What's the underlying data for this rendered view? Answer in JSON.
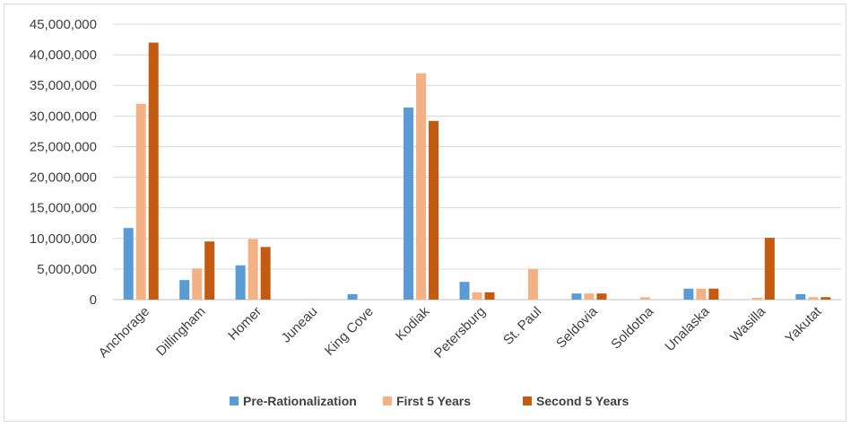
{
  "chart_data": {
    "type": "bar",
    "title": "",
    "xlabel": "",
    "ylabel": "",
    "ylim": [
      0,
      45000000
    ],
    "yticks": [
      0,
      5000000,
      10000000,
      15000000,
      20000000,
      25000000,
      30000000,
      35000000,
      40000000,
      45000000
    ],
    "ytick_labels": [
      "0",
      "5,000,000",
      "10,000,000",
      "15,000,000",
      "20,000,000",
      "25,000,000",
      "30,000,000",
      "35,000,000",
      "40,000,000",
      "45,000,000"
    ],
    "grid": true,
    "legend_position": "bottom",
    "categories": [
      "Anchorage",
      "Dillingham",
      "Homer",
      "Juneau",
      "King Cove",
      "Kodiak",
      "Petersburg",
      "St. Paul",
      "Seldovia",
      "Soldotna",
      "Unalaska",
      "Wasilla",
      "Yakutat"
    ],
    "series": [
      {
        "name": "Pre-Rationalization",
        "color": "#5b9bd5",
        "values": [
          11700000,
          3200000,
          5600000,
          0,
          900000,
          31400000,
          2900000,
          0,
          1000000,
          0,
          1800000,
          0,
          900000
        ]
      },
      {
        "name": "First 5 Years",
        "color": "#f4b183",
        "values": [
          32000000,
          5100000,
          9900000,
          0,
          0,
          37000000,
          1200000,
          5000000,
          1000000,
          400000,
          1800000,
          300000,
          400000
        ]
      },
      {
        "name": "Second 5 Years",
        "color": "#c55a11",
        "values": [
          42000000,
          9500000,
          8600000,
          0,
          0,
          29200000,
          1200000,
          0,
          1000000,
          0,
          1800000,
          10100000,
          400000
        ]
      }
    ]
  }
}
